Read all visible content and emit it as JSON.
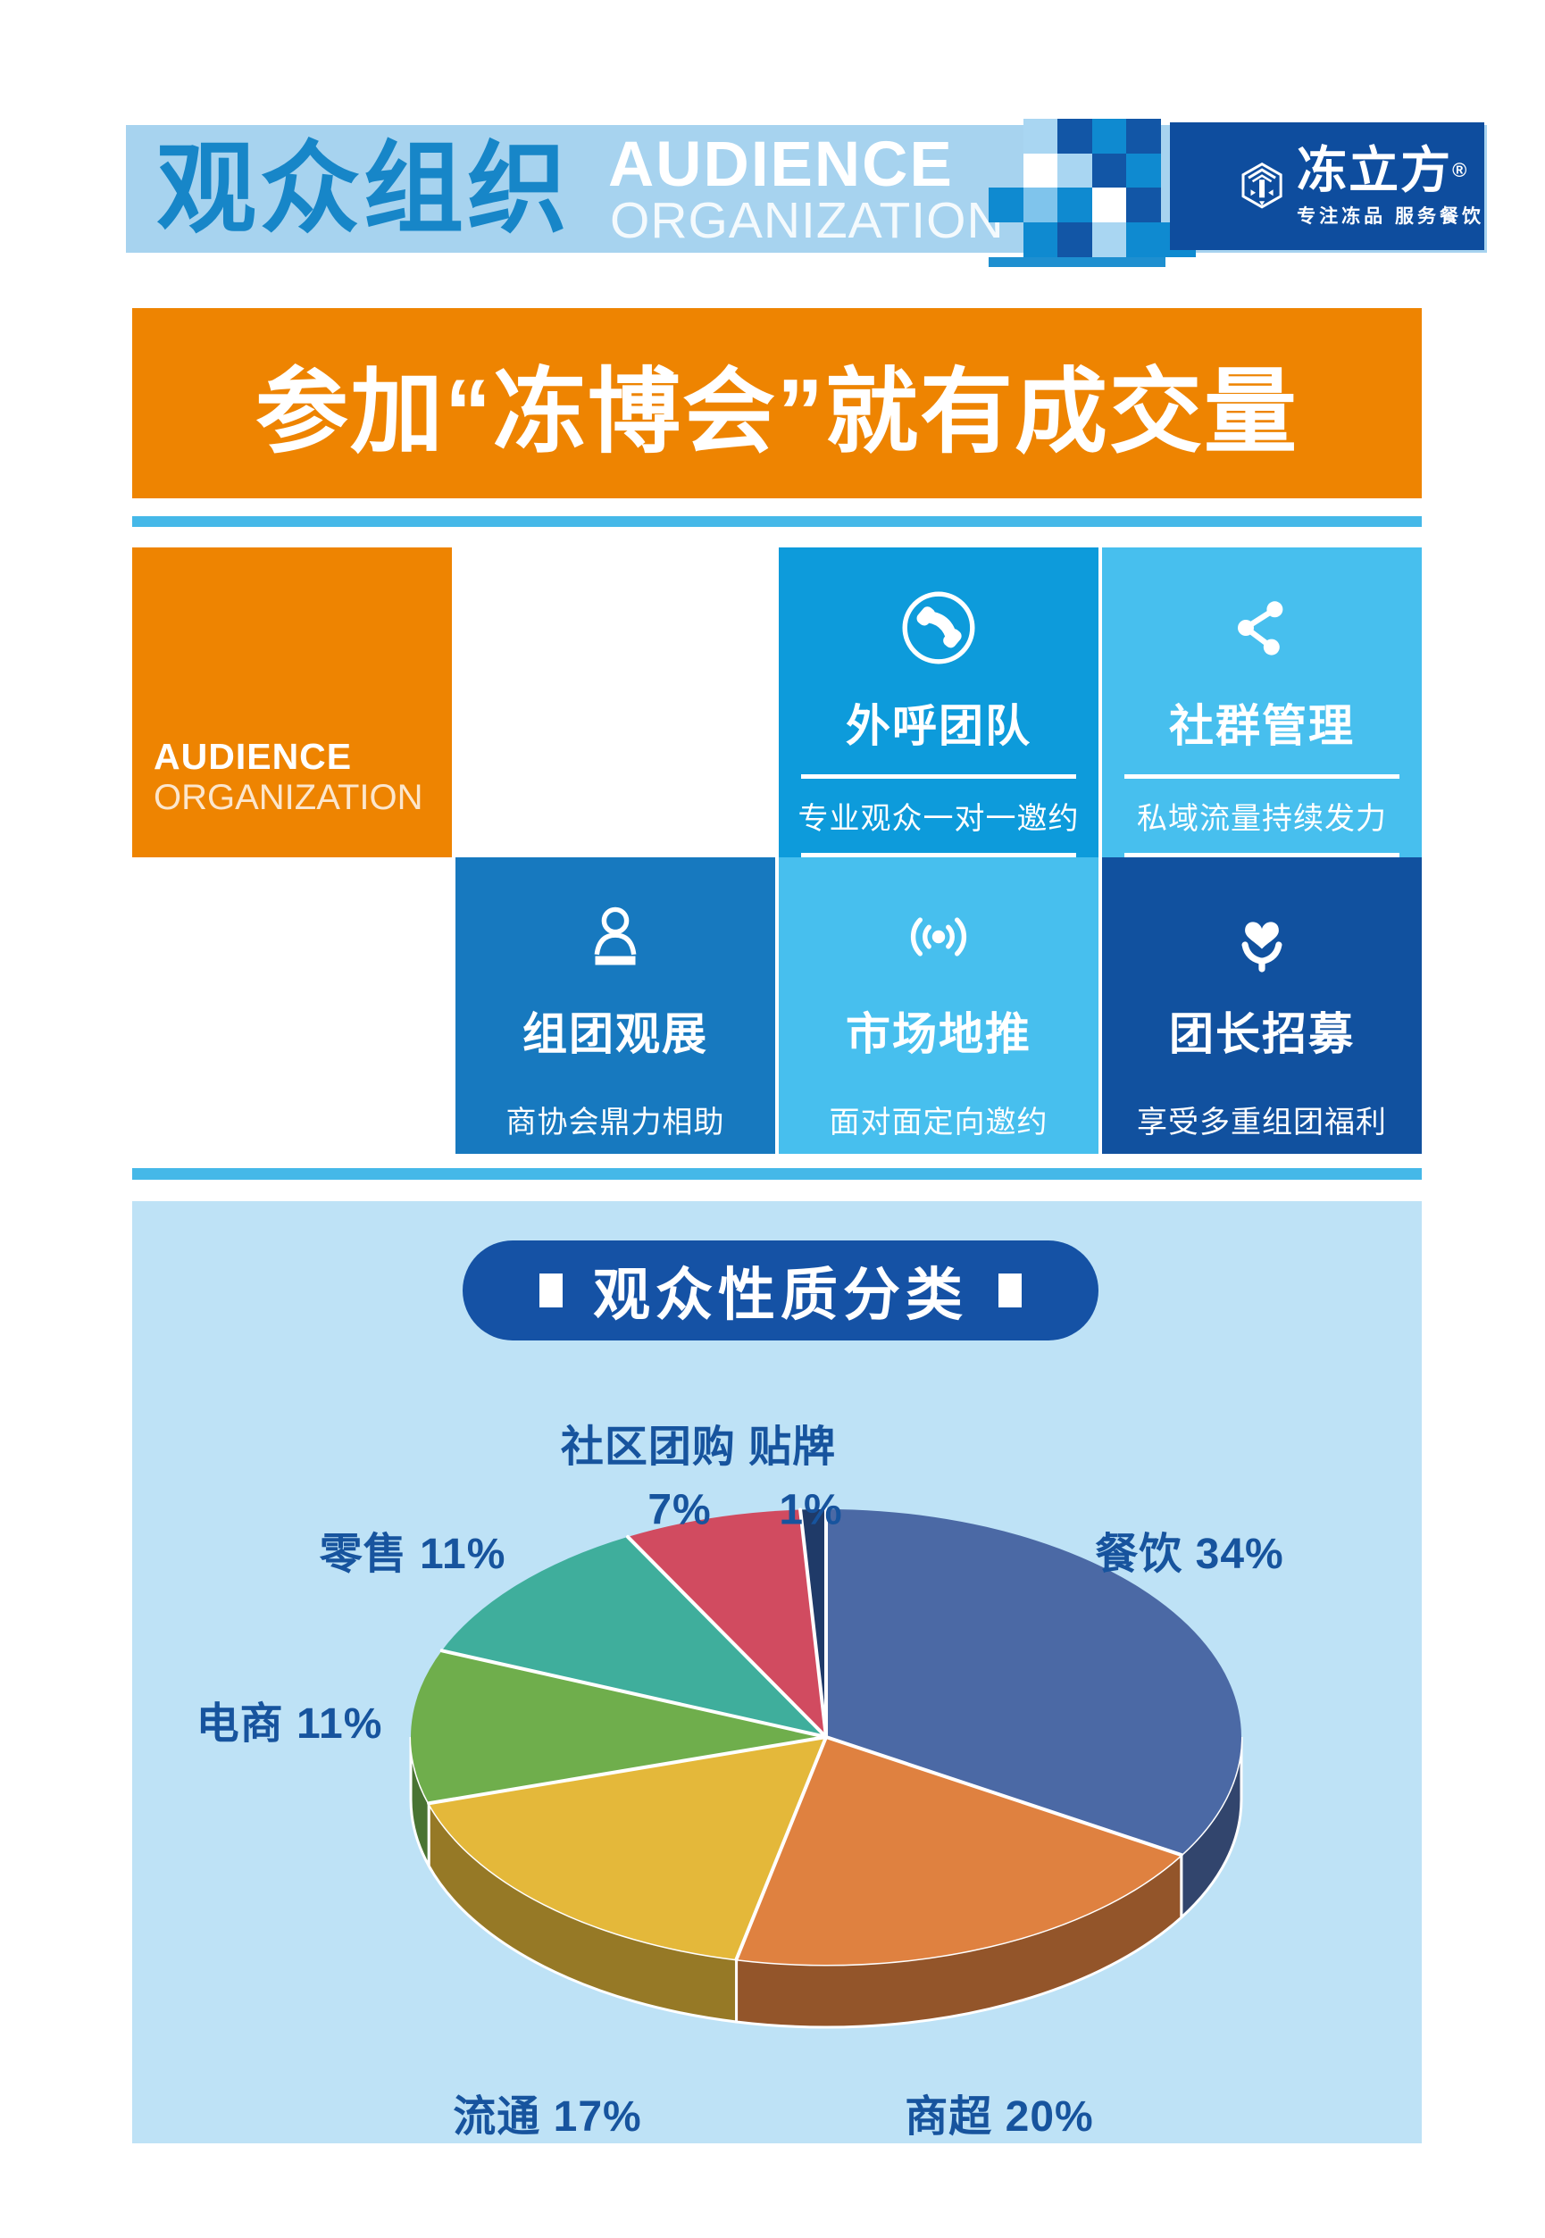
{
  "header": {
    "title_cn": "观众组织",
    "title_en_line1": "AUDIENCE",
    "title_en_line2": "ORGANIZATION",
    "colors": {
      "bar_bg": "#A7D3EF",
      "title_blue": "#1786C8",
      "navy_block": "#0E4D9E",
      "underline": "#1E8FD0"
    },
    "mosaic_rows": [
      "-PNMN-",
      "-WPNM-",
      "MLMWN-",
      "-MNPMM"
    ],
    "mosaic_colors": {
      "N": "#1256A6",
      "M": "#0F8AD0",
      "P": "#A9D6F2",
      "W": "#FFFFFF",
      "L": "#7FC4EC"
    },
    "logo": {
      "brand": "冻立方",
      "reg": "®",
      "slogan": "专注冻品 服务餐饮"
    }
  },
  "banner": {
    "text": "参加“冻博会”就有成交量",
    "bg": "#EE8401"
  },
  "divider_color": "#45B8E8",
  "cards": {
    "audience_card": {
      "line1": "AUDIENCE",
      "line2": "ORGANIZATION",
      "bg": "#EE8401"
    },
    "features": [
      {
        "title": "外呼团队",
        "subtitle": "专业观众一对一邀约",
        "icon": "phone-icon",
        "bg": "#0D9BDB"
      },
      {
        "title": "社群管理",
        "subtitle": "私域流量持续发力",
        "icon": "share-network-icon",
        "bg": "#47BFEE"
      },
      {
        "title": "组团观展",
        "subtitle": "商协会鼎力相助",
        "icon": "person-icon",
        "bg": "#1779BF"
      },
      {
        "title": "市场地推",
        "subtitle": "面对面定向邀约",
        "icon": "broadcast-icon",
        "bg": "#47BFEE"
      },
      {
        "title": "团长招募",
        "subtitle": "享受多重组团福利",
        "icon": "heart-hands-icon",
        "bg": "#11519F"
      }
    ]
  },
  "chart_section": {
    "panel_bg": "#BEE2F6",
    "title": "观众性质分类",
    "title_pill_bg": "#1552A5",
    "label_color": "#17549E",
    "labels": {
      "top_line": "社区团购 贴牌",
      "community_pct": "7%",
      "oem_pct": "1%",
      "retail": "零售 11%",
      "catering": "餐饮 34%",
      "ecommerce": "电商 11%",
      "circulation": "流通 17%",
      "supermarket": "商超 20%"
    }
  },
  "chart_data": {
    "type": "pie",
    "style": "3d",
    "title": "观众性质分类",
    "unit": "%",
    "start_angle_deg": -90,
    "direction": "clockwise",
    "series": [
      {
        "name": "餐饮",
        "value": 34,
        "color": "#4B69A5"
      },
      {
        "name": "商超",
        "value": 20,
        "color": "#DF8140"
      },
      {
        "name": "流通",
        "value": 17,
        "color": "#E4B83A"
      },
      {
        "name": "电商",
        "value": 11,
        "color": "#6FAE4C"
      },
      {
        "name": "零售",
        "value": 11,
        "color": "#3FAE9C"
      },
      {
        "name": "社区团购",
        "value": 7,
        "color": "#D14B60"
      },
      {
        "name": "贴牌",
        "value": 1,
        "color": "#1F3A68"
      }
    ]
  }
}
